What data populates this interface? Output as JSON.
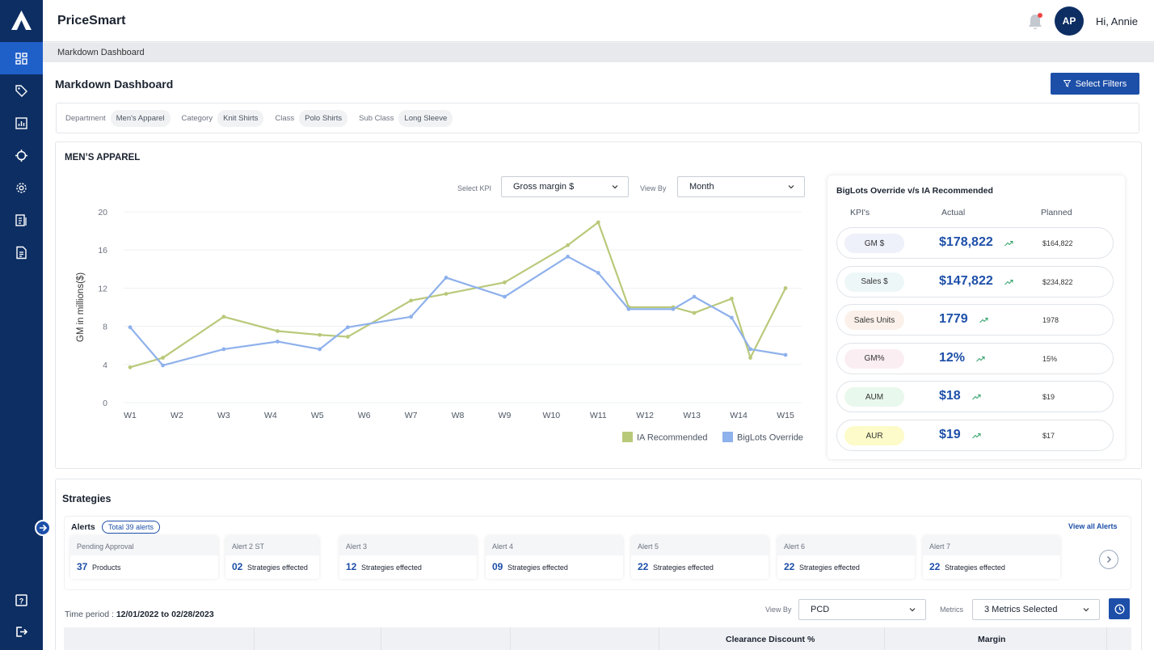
{
  "app": {
    "title": "PriceSmart",
    "greeting": "Hi, Annie",
    "avatar_initials": "AP"
  },
  "sidebar": {
    "items": [
      {
        "icon": "dashboard-icon",
        "active": true
      },
      {
        "icon": "tag-icon",
        "active": false
      },
      {
        "icon": "bar-chart-icon",
        "active": false
      },
      {
        "icon": "crosshair-icon",
        "active": false
      },
      {
        "icon": "gear-icon",
        "active": false
      },
      {
        "icon": "report-icon",
        "active": false
      },
      {
        "icon": "document-icon",
        "active": false
      }
    ],
    "bottom": [
      {
        "icon": "help-icon"
      },
      {
        "icon": "logout-icon"
      }
    ]
  },
  "breadcrumb": "Markdown Dashboard",
  "page": {
    "title": "Markdown Dashboard",
    "select_filters_label": "Select Filters"
  },
  "filters": [
    {
      "label": "Department",
      "value": "Men's Apparel"
    },
    {
      "label": "Category",
      "value": "Knit Shirts"
    },
    {
      "label": "Class",
      "value": "Polo Shirts"
    },
    {
      "label": "Sub Class",
      "value": "Long Sleeve"
    }
  ],
  "chart_panel": {
    "title": "MEN’S APPAREL",
    "select_kpi_label": "Select KPI",
    "select_kpi_value": "Gross margin $",
    "view_by_label": "View By",
    "view_by_value": "Month"
  },
  "chart_data": {
    "type": "line",
    "ylabel": "GM in millions($)",
    "ylim": [
      0,
      20
    ],
    "yticks": [
      "0",
      "4",
      "8",
      "12",
      "16",
      "20"
    ],
    "categories": [
      "W1",
      "W2",
      "W3",
      "W4",
      "W5",
      "W6",
      "W7",
      "W8",
      "W9",
      "W10",
      "W11",
      "W12",
      "W13",
      "W14",
      "W15"
    ],
    "grid": true,
    "legend_position": "bottom-right",
    "series": [
      {
        "name": "IA Recommended",
        "color": "#b9c97a",
        "values": [
          3.7,
          4.7,
          9.0,
          7.5,
          7.1,
          6.9,
          10.7,
          11.4,
          12.6,
          16.5,
          18.9,
          10.0,
          10.0,
          9.4,
          10.9,
          4.7,
          12.0
        ],
        "x": [
          1,
          1.7,
          3,
          4.15,
          5.05,
          5.65,
          7,
          7.75,
          9,
          10.35,
          11,
          11.65,
          12.6,
          13.05,
          13.85,
          14.25,
          15
        ]
      },
      {
        "name": "BigLots Override",
        "color": "#8fb1ec",
        "values": [
          7.9,
          3.9,
          5.6,
          6.4,
          5.6,
          7.9,
          9.0,
          13.1,
          11.1,
          15.3,
          13.6,
          9.8,
          9.8,
          11.1,
          8.9,
          5.6,
          5.0
        ],
        "x": [
          1,
          1.7,
          3,
          4.15,
          5.05,
          5.65,
          7,
          7.75,
          9,
          10.35,
          11,
          11.65,
          12.6,
          13.05,
          13.85,
          14.25,
          15
        ]
      }
    ]
  },
  "kpi_card": {
    "title": "BigLots Override v/s IA Recommended",
    "headers": {
      "kpi": "KPI's",
      "actual": "Actual",
      "planned": "Planned"
    },
    "rows": [
      {
        "kpi": "GM $",
        "actual": "$178,822",
        "planned": "$164,822",
        "pill_color": "#eef0fa"
      },
      {
        "kpi": "Sales $",
        "actual": "$147,822",
        "planned": "$234,822",
        "pill_color": "#eef7f8"
      },
      {
        "kpi": "Sales Units",
        "actual": "1779",
        "planned": "1978",
        "pill_color": "#fbf1ea"
      },
      {
        "kpi": "GM%",
        "actual": "12%",
        "planned": "15%",
        "pill_color": "#fbeef2"
      },
      {
        "kpi": "AUM",
        "actual": "$18",
        "planned": "$19",
        "pill_color": "#e9f8ec"
      },
      {
        "kpi": "AUR",
        "actual": "$19",
        "planned": "$17",
        "pill_color": "#fcfbc9"
      }
    ]
  },
  "strategies": {
    "title": "Strategies",
    "alerts_label": "Alerts",
    "alerts_total": "Total 39 alerts",
    "view_all": "View all Alerts",
    "alerts": [
      {
        "name": "Pending Approval",
        "count": "37",
        "text": "Products"
      },
      {
        "name": "Alert 2 ST",
        "count": "02",
        "text": "Strategies effected"
      },
      {
        "name": "Alert 3",
        "count": "12",
        "text": "Strategies effected"
      },
      {
        "name": "Alert 4",
        "count": "09",
        "text": "Strategies effected"
      },
      {
        "name": "Alert 5",
        "count": "22",
        "text": "Strategies effected"
      },
      {
        "name": "Alert 6",
        "count": "22",
        "text": "Strategies effected"
      },
      {
        "name": "Alert 7",
        "count": "22",
        "text": "Strategies effected"
      }
    ],
    "time_period_label": "Time period : ",
    "time_period_value": "12/01/2022 to 02/28/2023",
    "view_by_label": "View By",
    "view_by_value": "PCD",
    "metrics_label": "Metrics",
    "metrics_value": "3 Metrics Selected",
    "table_headers": [
      "Clearance Discount %",
      "Margin"
    ]
  }
}
